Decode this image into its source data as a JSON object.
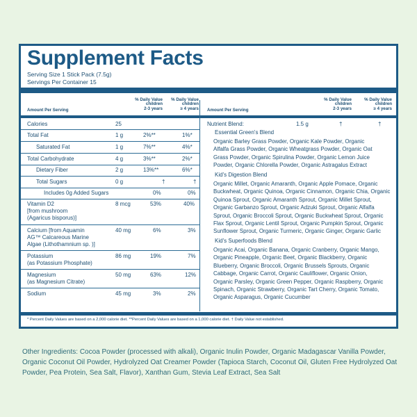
{
  "title": "Supplement Facts",
  "serving_size": "Serving Size 1 Stick Pack (7.5g)",
  "servings_per_container": "Servings Per Container 15",
  "headers": {
    "amount_per_serving": "Amount Per Serving",
    "dv_children_2_3": [
      "% Daily Value",
      "children",
      "2-3 years"
    ],
    "dv_children_4": [
      "% Daily Value",
      "children",
      "≥ 4 years"
    ]
  },
  "left_rows": [
    {
      "name": "Calories",
      "amount": "25",
      "dv1": "",
      "dv2": ""
    },
    {
      "name": "Total Fat",
      "amount": "1 g",
      "dv1": "2%**",
      "dv2": "1%*"
    },
    {
      "name": "Saturated Fat",
      "amount": "1 g",
      "dv1": "7%**",
      "dv2": "4%*"
    },
    {
      "name": "Total Carbohydrate",
      "amount": "4 g",
      "dv1": "3%**",
      "dv2": "2%*"
    },
    {
      "name": "Dietary Fiber",
      "amount": "2 g",
      "dv1": "13%**",
      "dv2": "6%*"
    },
    {
      "name": "Total Sugars",
      "amount": "0 g",
      "dv1": "†",
      "dv2": "†"
    },
    {
      "name": "Includes 0g Added Sugars",
      "amount": "",
      "dv1": "0%",
      "dv2": "0%"
    },
    {
      "name": [
        "Vitamin D2",
        "[from mushroom",
        "(Agaricus bisporus)]"
      ],
      "amount": "8 mcg",
      "dv1": "53%",
      "dv2": "40%"
    },
    {
      "name": [
        "Calcium [from Aquamin",
        "AG™ Calcareous Marine",
        "Algae (Lithothamnium sp. )]"
      ],
      "amount": "40 mg",
      "dv1": "6%",
      "dv2": "3%"
    },
    {
      "name": [
        "Potassium",
        "(as Potassium Phosphate)"
      ],
      "amount": "86 mg",
      "dv1": "19%",
      "dv2": "7%"
    },
    {
      "name": [
        "Magnesium",
        "(as Magnesium Citrate)"
      ],
      "amount": "50 mg",
      "dv1": "63%",
      "dv2": "12%"
    },
    {
      "name": "Sodium",
      "amount": "45 mg",
      "dv1": "3%",
      "dv2": "2%"
    }
  ],
  "nutrient_blend": {
    "name": "Nutrient Blend:",
    "amount": "1.5 g",
    "dv1": "†",
    "dv2": "†"
  },
  "blends": [
    {
      "name": "Essential Green's Blend",
      "lines": [
        "Organic Barley Grass Powder, Organic Kale Powder, Organic",
        "Alfalfa Grass Powder, Organic Wheatgrass Powder, Organic Oat",
        "Grass Powder, Organic Spirulina Powder, Organic Lemon Juice",
        "Powder, Organic Chlorella Powder, Organic Astragalus Extract"
      ]
    },
    {
      "name": "Kid's Digestion Blend",
      "lines": [
        "Organic Millet, Organic Amaranth, Organic Apple Pomace, Organic",
        "Buckwheat, Organic Quinoa, Organic Cinnamon, Organic Chia, Organic",
        "Quinoa Sprout, Organic Amaranth Sprout, Organic Millet Sprout,",
        "Organic Garbanzo Sprout, Organic Adzuki Sprout, Organic Alfalfa",
        "Sprout, Organic Broccoli Sprout, Organic Buckwheat Sprout, Organic",
        "Flax Sprout, Organic Lentil Sprout, Organic Pumpkin Sprout, Organic",
        "Sunflower Sprout, Organic Turmeric, Organic Ginger, Organic Garlic"
      ]
    },
    {
      "name": "Kid's Superfoods Blend",
      "lines": [
        "Organic Acai, Organic Banana, Organic Cranberry, Organic Mango,",
        "Organic Pineapple, Organic Beet, Organic Blackberry, Organic",
        "Blueberry, Organic Broccoli, Organic Brussels Sprouts, Organic",
        "Cabbage, Organic Carrot, Organic Cauliflower, Organic Onion,",
        "Organic Parsley, Organic Green Pepper, Organic Raspberry, Organic",
        "Spinach, Organic Strawberry, Organic Tart Cherry, Organic Tomato,",
        "Organic Asparagus, Organic Cucumber"
      ]
    }
  ],
  "footnote": "* Percent Daily Values are based on a 2,000 calorie diet.  **Percent Daily Values are based on a 1,000 calorie diet.   † Daily Value not established.",
  "other_ingredients": "Other Ingredients: Cocoa Powder (processed with alkali), Organic Inulin Powder, Organic Madagascar Vanilla Powder, Organic Coconut Oil Powder, Hydrolyzed Oat Creamer Powder (Tapioca Starch, Coconut Oil, Gluten Free Hydrolyzed Oat Powder, Pea Protein, Sea Salt, Flavor), Xanthan Gum, Stevia Leaf Extract, Sea Salt",
  "colors": {
    "navy": "#1d5a86",
    "background": "#e9f4e4",
    "text": "#1d4f73",
    "other_text": "#2e6b7a"
  }
}
